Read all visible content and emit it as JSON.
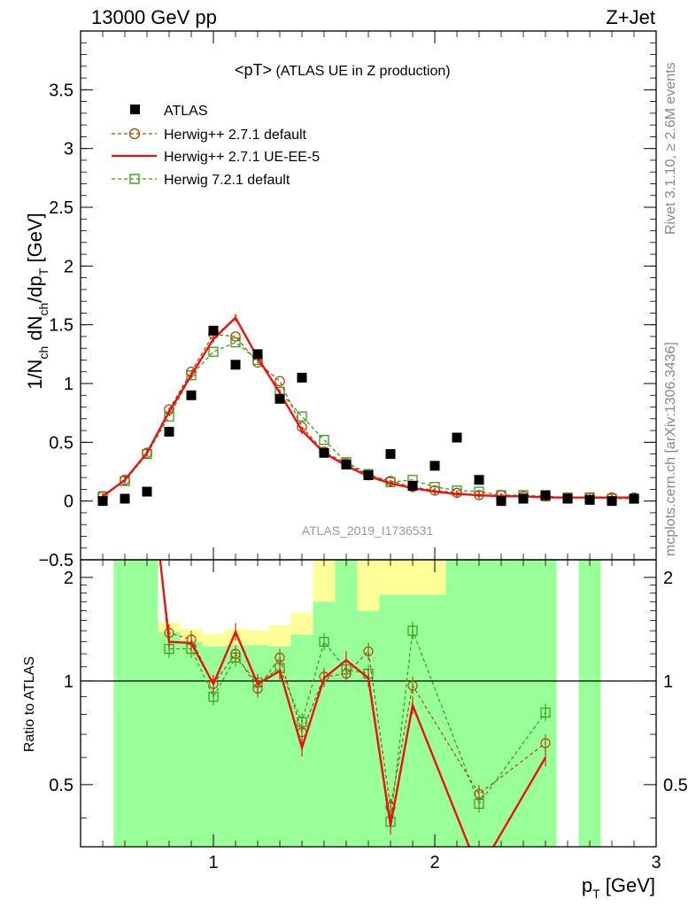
{
  "header": {
    "energy": "13000 GeV pp",
    "process": "Z+Jet"
  },
  "side": {
    "rivet": "Rivet 3.1.10, ≥ 2.6M events",
    "mcplots": "mcplots.cern.ch [arXiv:1306.3436]"
  },
  "analysis_id": "ATLAS_2019_I1736531",
  "legend_title": {
    "main": "<pT>",
    "sub": " (ATLAS UE in Z production)"
  },
  "legend": [
    {
      "label": "ATLAS",
      "marker": "filled-square",
      "color": "#000000"
    },
    {
      "label": "Herwig++ 2.7.1 default",
      "marker": "open-circle",
      "color": "#a0520a",
      "dash": true
    },
    {
      "label": "Herwig++ 2.7.1 UE-EE-5",
      "marker": "line",
      "color": "#ee1111",
      "dash": false
    },
    {
      "label": "Herwig 7.2.1 default",
      "marker": "open-square",
      "color": "#3a9a1a",
      "dash": true
    }
  ],
  "chart_data": [
    {
      "type": "scatter",
      "panel": "main",
      "ylabel": {
        "t1": "1/N",
        "s1": "ch",
        "t2": " dN",
        "s2": "ch",
        "t3": "/dp",
        "s3": "T",
        "t4": " [GeV]"
      },
      "xlim": [
        0.4,
        3.0
      ],
      "ylim": [
        -0.5,
        4.0
      ],
      "yticks": [
        -0.5,
        0,
        0.5,
        1,
        1.5,
        2,
        2.5,
        3,
        3.5
      ],
      "ytick_labels": [
        "−0.5",
        "0",
        "0.5",
        "1",
        "1.5",
        "2",
        "2.5",
        "3",
        "3.5"
      ],
      "x": [
        0.5,
        0.6,
        0.7,
        0.8,
        0.9,
        1.0,
        1.1,
        1.2,
        1.3,
        1.4,
        1.5,
        1.6,
        1.7,
        1.8,
        1.9,
        2.0,
        2.1,
        2.2,
        2.3,
        2.4,
        2.5,
        2.6,
        2.7,
        2.8,
        2.9
      ],
      "series": [
        {
          "name": "ATLAS",
          "values": [
            0.0,
            0.02,
            0.08,
            0.59,
            0.9,
            1.45,
            1.16,
            1.25,
            0.87,
            1.05,
            0.41,
            0.31,
            0.22,
            0.4,
            0.13,
            0.3,
            0.54,
            0.18,
            0.0,
            0.02,
            0.05,
            0.02,
            0.01,
            0.0,
            0.02
          ]
        },
        {
          "name": "Herwig++ 2.7.1 default",
          "values": [
            0.04,
            0.18,
            0.41,
            0.78,
            1.1,
            1.42,
            1.4,
            1.18,
            1.02,
            0.63,
            0.42,
            0.32,
            0.22,
            0.17,
            0.12,
            0.09,
            0.07,
            0.05,
            0.05,
            0.04,
            0.04,
            0.03,
            0.03,
            0.03,
            0.03
          ]
        },
        {
          "name": "Herwig++ 2.7.1 UE-EE-5",
          "values": [
            0.04,
            0.18,
            0.41,
            0.76,
            1.07,
            1.38,
            1.56,
            1.22,
            0.92,
            0.6,
            0.41,
            0.3,
            0.21,
            0.15,
            0.11,
            0.08,
            0.06,
            0.05,
            0.04,
            0.04,
            0.03,
            0.03,
            0.03,
            0.03,
            0.03
          ]
        },
        {
          "name": "Herwig 7.2.1 default",
          "values": [
            0.04,
            0.17,
            0.4,
            0.72,
            1.07,
            1.27,
            1.35,
            1.2,
            0.93,
            0.72,
            0.52,
            0.33,
            0.23,
            0.16,
            0.18,
            0.12,
            0.09,
            0.08,
            0.05,
            0.05,
            0.04,
            0.03,
            0.03,
            0.02,
            0.02
          ]
        }
      ]
    },
    {
      "type": "line",
      "panel": "ratio",
      "ylabel": "Ratio to ATLAS",
      "xlabel": {
        "t1": "p",
        "s1": "T",
        "t2": " [GeV]"
      },
      "xlim": [
        0.4,
        3.0
      ],
      "ylim": [
        0.33,
        2.25
      ],
      "xticks": [
        1,
        2,
        3
      ],
      "xtick_labels": [
        "1",
        "2",
        "3"
      ],
      "yticks": [
        0.5,
        1,
        2
      ],
      "ytick_labels": [
        "0.5",
        "1",
        "2"
      ],
      "x": [
        0.8,
        0.9,
        1.0,
        1.1,
        1.2,
        1.3,
        1.4,
        1.5,
        1.6,
        1.7,
        1.8,
        1.9,
        2.2,
        2.5
      ],
      "series": [
        {
          "name": "Herwig++ 2.7.1 default",
          "values": [
            1.38,
            1.32,
            0.98,
            1.2,
            0.95,
            1.17,
            0.71,
            1.03,
            1.05,
            1.22,
            0.43,
            0.97,
            0.47,
            0.66
          ]
        },
        {
          "name": "Herwig++ 2.7.1 UE-EE-5",
          "values": [
            1.3,
            1.29,
            0.98,
            1.39,
            0.98,
            1.07,
            0.64,
            1.02,
            1.15,
            1.02,
            0.38,
            0.85,
            0.28,
            0.6
          ]
        },
        {
          "name": "Herwig 7.2.1 default",
          "values": [
            1.24,
            1.24,
            0.9,
            1.17,
            0.99,
            1.09,
            0.76,
            1.3,
            1.08,
            1.05,
            0.39,
            1.4,
            0.44,
            0.81
          ]
        }
      ],
      "bands_yellow": [
        {
          "x0": 0.75,
          "x1": 0.85,
          "lo": 0.72,
          "hi": 1.48
        },
        {
          "x0": 0.85,
          "x1": 0.95,
          "lo": 0.78,
          "hi": 1.42
        },
        {
          "x0": 0.95,
          "x1": 1.05,
          "lo": 0.82,
          "hi": 1.37
        },
        {
          "x0": 1.05,
          "x1": 1.15,
          "lo": 0.79,
          "hi": 1.42
        },
        {
          "x0": 1.15,
          "x1": 1.25,
          "lo": 0.79,
          "hi": 1.4
        },
        {
          "x0": 1.25,
          "x1": 1.35,
          "lo": 0.76,
          "hi": 1.45
        },
        {
          "x0": 1.35,
          "x1": 1.45,
          "lo": 0.7,
          "hi": 1.58
        },
        {
          "x0": 1.45,
          "x1": 1.55,
          "lo": 0.33,
          "hi": 2.25
        },
        {
          "x0": 1.55,
          "x1": 1.65,
          "lo": 0.33,
          "hi": 2.25
        },
        {
          "x0": 1.65,
          "x1": 1.75,
          "lo": 0.33,
          "hi": 2.25
        },
        {
          "x0": 1.75,
          "x1": 1.85,
          "lo": 0.33,
          "hi": 2.25
        },
        {
          "x0": 1.85,
          "x1": 1.95,
          "lo": 0.33,
          "hi": 2.25
        },
        {
          "x0": 1.95,
          "x1": 2.05,
          "lo": 0.33,
          "hi": 2.25
        },
        {
          "x0": 2.05,
          "x1": 2.15,
          "lo": 0.33,
          "hi": 2.25
        },
        {
          "x0": 2.15,
          "x1": 2.25,
          "lo": 0.33,
          "hi": 2.25
        },
        {
          "x0": 2.25,
          "x1": 2.35,
          "lo": 0.33,
          "hi": 2.25
        },
        {
          "x0": 2.35,
          "x1": 2.45,
          "lo": 0.33,
          "hi": 2.25
        },
        {
          "x0": 2.45,
          "x1": 2.55,
          "lo": 0.33,
          "hi": 2.25
        }
      ],
      "bands_green": [
        {
          "x0": 0.55,
          "x1": 0.65,
          "lo": 0.33,
          "hi": 2.25
        },
        {
          "x0": 0.65,
          "x1": 0.75,
          "lo": 0.33,
          "hi": 2.25
        },
        {
          "x0": 0.75,
          "x1": 0.85,
          "lo": 0.33,
          "hi": 1.39
        },
        {
          "x0": 0.85,
          "x1": 0.95,
          "lo": 0.33,
          "hi": 1.3
        },
        {
          "x0": 0.95,
          "x1": 1.05,
          "lo": 0.33,
          "hi": 1.26
        },
        {
          "x0": 1.05,
          "x1": 1.15,
          "lo": 0.33,
          "hi": 1.27
        },
        {
          "x0": 1.15,
          "x1": 1.25,
          "lo": 0.33,
          "hi": 1.27
        },
        {
          "x0": 1.25,
          "x1": 1.35,
          "lo": 0.33,
          "hi": 1.26
        },
        {
          "x0": 1.35,
          "x1": 1.45,
          "lo": 0.33,
          "hi": 1.36
        },
        {
          "x0": 1.45,
          "x1": 1.55,
          "lo": 0.33,
          "hi": 1.7
        },
        {
          "x0": 1.55,
          "x1": 1.65,
          "lo": 0.33,
          "hi": 2.25
        },
        {
          "x0": 1.65,
          "x1": 1.75,
          "lo": 0.33,
          "hi": 1.6
        },
        {
          "x0": 1.75,
          "x1": 1.85,
          "lo": 0.33,
          "hi": 1.78
        },
        {
          "x0": 1.85,
          "x1": 1.95,
          "lo": 0.33,
          "hi": 1.78
        },
        {
          "x0": 1.95,
          "x1": 2.05,
          "lo": 0.33,
          "hi": 1.78
        },
        {
          "x0": 2.05,
          "x1": 2.15,
          "lo": 0.33,
          "hi": 2.25
        },
        {
          "x0": 2.15,
          "x1": 2.25,
          "lo": 0.33,
          "hi": 2.25
        },
        {
          "x0": 2.25,
          "x1": 2.35,
          "lo": 0.33,
          "hi": 2.25
        },
        {
          "x0": 2.35,
          "x1": 2.45,
          "lo": 0.33,
          "hi": 2.25
        },
        {
          "x0": 2.45,
          "x1": 2.55,
          "lo": 0.33,
          "hi": 2.25
        },
        {
          "x0": 2.65,
          "x1": 2.75,
          "lo": 0.33,
          "hi": 2.25
        }
      ]
    }
  ]
}
